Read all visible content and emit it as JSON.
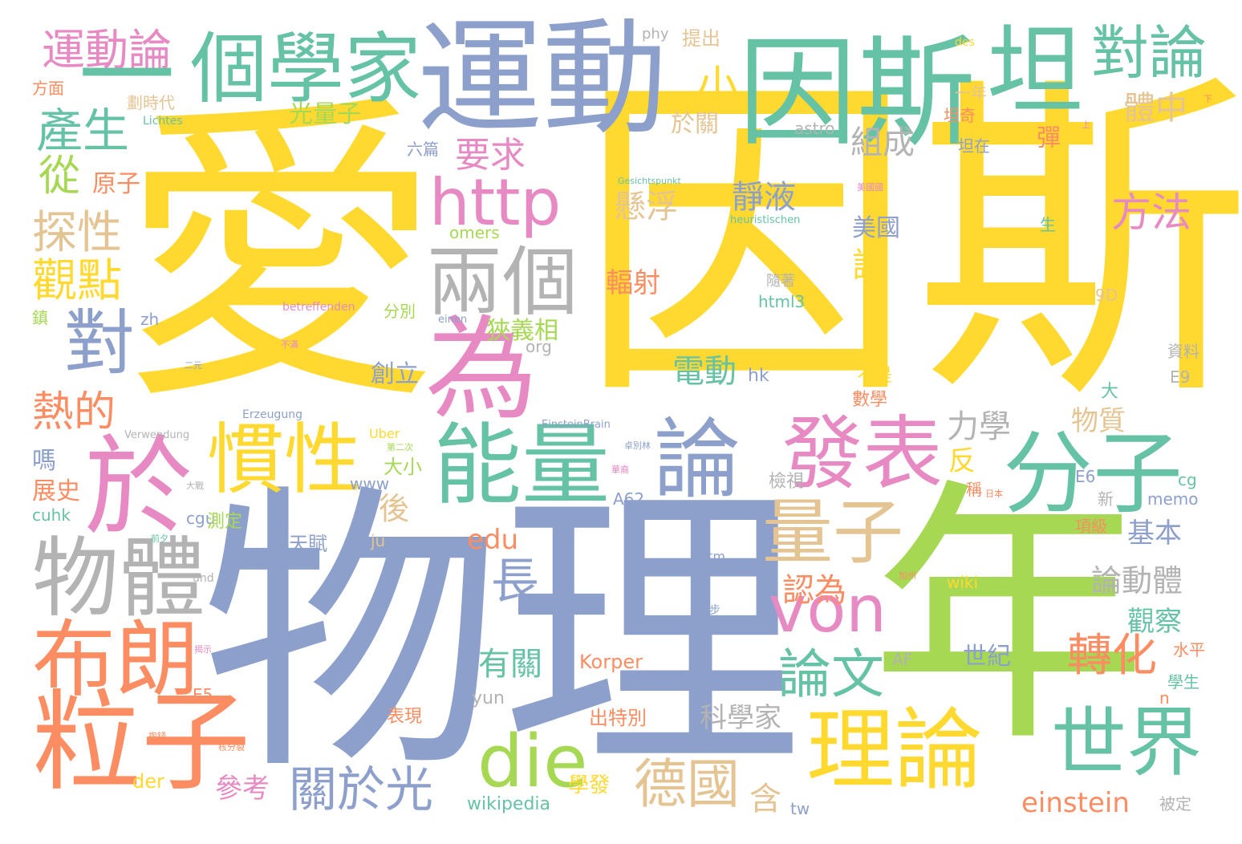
{
  "palette": {
    "yellow": "#ffd92f",
    "green": "#a6d854",
    "blue": "#8da0cb",
    "teal": "#66c2a5",
    "pink": "#e78ac3",
    "orange": "#fc8d62",
    "tan": "#e5c494",
    "gray": "#b3b3b3"
  },
  "words": [
    {
      "text": "愛",
      "color": "yellow",
      "role": "word-ai"
    },
    {
      "text": "因斯",
      "color": "yellow",
      "role": "word-yinsi"
    },
    {
      "text": "物理",
      "color": "blue",
      "role": "word-wuli"
    },
    {
      "text": "年",
      "color": "green",
      "role": "word-nian"
    },
    {
      "text": "運動",
      "color": "blue",
      "role": "word-yundong"
    },
    {
      "text": "因斯",
      "color": "teal",
      "role": "word-yinsi-2"
    },
    {
      "text": "坦",
      "color": "teal",
      "role": "word-tan"
    },
    {
      "text": "個學家",
      "color": "teal",
      "role": "word-gexuejia"
    },
    {
      "text": "運動論",
      "color": "pink",
      "role": "word-yundonglun"
    },
    {
      "text": "對論",
      "color": "teal",
      "role": "word-duilun"
    },
    {
      "text": "一",
      "color": "teal",
      "role": "word-yi"
    },
    {
      "text": "產生",
      "color": "teal",
      "role": "word-chansheng"
    },
    {
      "text": "為",
      "color": "pink",
      "role": "word-wei"
    },
    {
      "text": "於",
      "color": "pink",
      "role": "word-yu"
    },
    {
      "text": "能量",
      "color": "teal",
      "role": "word-nengliang"
    },
    {
      "text": "論",
      "color": "blue",
      "role": "word-lun"
    },
    {
      "text": "發表",
      "color": "pink",
      "role": "word-fabiao"
    },
    {
      "text": "分子",
      "color": "teal",
      "role": "word-fenzi"
    },
    {
      "text": "慣性",
      "color": "yellow",
      "role": "word-guanxing"
    },
    {
      "text": "物體",
      "color": "gray",
      "role": "word-wuti"
    },
    {
      "text": "布朗",
      "color": "orange",
      "role": "word-bulang"
    },
    {
      "text": "粒子",
      "color": "orange",
      "role": "word-lizi"
    },
    {
      "text": "http",
      "color": "pink",
      "role": "word-http"
    },
    {
      "text": "兩個",
      "color": "gray",
      "role": "word-liangge"
    },
    {
      "text": "對",
      "color": "blue",
      "role": "word-dui"
    },
    {
      "text": "量子",
      "color": "tan",
      "role": "word-liangzi"
    },
    {
      "text": "von",
      "color": "pink",
      "role": "word-von"
    },
    {
      "text": "理論",
      "color": "yellow",
      "role": "word-lilun"
    },
    {
      "text": "世界",
      "color": "teal",
      "role": "word-shijie"
    },
    {
      "text": "die",
      "color": "green",
      "role": "word-die"
    },
    {
      "text": "德國",
      "color": "tan",
      "role": "word-deguo"
    },
    {
      "text": "關於光",
      "color": "blue",
      "role": "word-guanyuguang"
    },
    {
      "text": "論文",
      "color": "teal",
      "role": "word-lunwen"
    },
    {
      "text": "長",
      "color": "blue",
      "role": "word-chang"
    },
    {
      "text": "從",
      "color": "green",
      "role": "word-cong"
    },
    {
      "text": "探性",
      "color": "tan",
      "role": "word-tanxing"
    },
    {
      "text": "觀點",
      "color": "yellow",
      "role": "word-guandian"
    },
    {
      "text": "熱的",
      "color": "orange",
      "role": "word-rede"
    },
    {
      "text": "要求",
      "color": "pink",
      "role": "word-yaoqiu"
    },
    {
      "text": "組成",
      "color": "gray",
      "role": "word-zucheng"
    },
    {
      "text": "靜液",
      "color": "blue",
      "role": "word-jingye"
    },
    {
      "text": "懸浮",
      "color": "tan",
      "role": "word-xuanfu"
    },
    {
      "text": "方法",
      "color": "pink",
      "role": "word-fangfa"
    },
    {
      "text": "小",
      "color": "yellow",
      "role": "word-xiao"
    },
    {
      "text": "體中",
      "color": "tan",
      "role": "word-tizhong"
    },
    {
      "text": "光量子",
      "color": "green",
      "role": "word-guangliangzi"
    },
    {
      "text": "原子",
      "color": "orange",
      "role": "word-yuanzi"
    },
    {
      "text": "美國",
      "color": "blue",
      "role": "word-meiguo"
    },
    {
      "text": "試",
      "color": "yellow",
      "role": "word-shi"
    },
    {
      "text": "輻射",
      "color": "orange",
      "role": "word-fushe"
    },
    {
      "text": "狹義相",
      "color": "green",
      "role": "word-xiayixiang"
    },
    {
      "text": "創立",
      "color": "blue",
      "role": "word-chuangli"
    },
    {
      "text": "電動",
      "color": "teal",
      "role": "word-diandong"
    },
    {
      "text": "力學",
      "color": "gray",
      "role": "word-lixue"
    },
    {
      "text": "物質",
      "color": "tan",
      "role": "word-wuzhi"
    },
    {
      "text": "反",
      "color": "yellow",
      "role": "word-fan"
    },
    {
      "text": "後",
      "color": "tan",
      "role": "word-hou"
    },
    {
      "text": "基本",
      "color": "blue",
      "role": "word-jiben"
    },
    {
      "text": "論動體",
      "color": "gray",
      "role": "word-lundongti"
    },
    {
      "text": "認為",
      "color": "orange",
      "role": "word-renwei"
    },
    {
      "text": "觀察",
      "color": "teal",
      "role": "word-guancha"
    },
    {
      "text": "轉化",
      "color": "orange",
      "role": "word-zhuanhua"
    },
    {
      "text": "有關",
      "color": "teal",
      "role": "word-youguan"
    },
    {
      "text": "科學家",
      "color": "gray",
      "role": "word-kexuejia"
    },
    {
      "text": "參考",
      "color": "pink",
      "role": "word-cankao"
    },
    {
      "text": "含",
      "color": "tan",
      "role": "word-han"
    },
    {
      "text": "einstein",
      "color": "orange",
      "role": "word-einstein"
    },
    {
      "text": "edu",
      "color": "orange",
      "role": "word-edu"
    },
    {
      "text": "嗎",
      "color": "blue",
      "role": "word-ma"
    },
    {
      "text": "展史",
      "color": "orange",
      "role": "word-zhanshi"
    },
    {
      "text": "提出",
      "color": "tan",
      "role": "word-tichu"
    },
    {
      "text": "phy",
      "color": "gray",
      "role": "word-phy"
    },
    {
      "text": "於關",
      "color": "tan",
      "role": "word-yuguan"
    },
    {
      "text": "一年",
      "color": "tan",
      "role": "word-yinian"
    },
    {
      "text": "坦奇",
      "color": "orange",
      "role": "word-tanqi"
    },
    {
      "text": "坦在",
      "color": "blue",
      "role": "word-tanzai"
    },
    {
      "text": "彈",
      "color": "orange",
      "role": "word-dan"
    },
    {
      "text": "方面",
      "color": "orange",
      "role": "word-fangmian"
    },
    {
      "text": "劃時代",
      "color": "tan",
      "role": "word-huashidai"
    },
    {
      "text": "Lichtes",
      "color": "teal",
      "role": "word-lichtes"
    },
    {
      "text": "六篇",
      "color": "blue",
      "role": "word-liupian"
    },
    {
      "text": "astro",
      "color": "gray",
      "role": "word-astro"
    },
    {
      "text": "omers",
      "color": "green",
      "role": "word-omers"
    },
    {
      "text": "heuristischen",
      "color": "teal",
      "role": "word-heuristischen"
    },
    {
      "text": "Gesichtspunkt",
      "color": "teal",
      "role": "word-gesichtspunkt"
    },
    {
      "text": "des",
      "color": "yellow",
      "role": "word-des"
    },
    {
      "text": "隨著",
      "color": "gray",
      "role": "word-suizhe"
    },
    {
      "text": "html3",
      "color": "teal",
      "role": "word-html3"
    },
    {
      "text": "betreffenden",
      "color": "pink",
      "role": "word-betreffenden"
    },
    {
      "text": "分別",
      "color": "green",
      "role": "word-fenbie"
    },
    {
      "text": "zh",
      "color": "blue",
      "role": "word-zh"
    },
    {
      "text": "org",
      "color": "gray",
      "role": "word-org"
    },
    {
      "text": "einen",
      "color": "blue",
      "role": "word-einen"
    },
    {
      "text": "hk",
      "color": "blue",
      "role": "word-hk"
    },
    {
      "text": "Erzeugung",
      "color": "blue",
      "role": "word-erzeugung"
    },
    {
      "text": "EinsteinBrain",
      "color": "blue",
      "role": "word-einsteinbrain"
    },
    {
      "text": "Verwendung",
      "color": "gray",
      "role": "word-verwendung"
    },
    {
      "text": "Uber",
      "color": "yellow",
      "role": "word-uber"
    },
    {
      "text": "大小",
      "color": "green",
      "role": "word-daxiao"
    },
    {
      "text": "www",
      "color": "blue",
      "role": "word-www"
    },
    {
      "text": "cuhk",
      "color": "teal",
      "role": "word-cuhk"
    },
    {
      "text": "cgu",
      "color": "blue",
      "role": "word-cgu"
    },
    {
      "text": "測定",
      "color": "green",
      "role": "word-ceding"
    },
    {
      "text": "天賦",
      "color": "blue",
      "role": "word-tianfu"
    },
    {
      "text": "ju",
      "color": "tan",
      "role": "word-ju"
    },
    {
      "text": "A62",
      "color": "blue",
      "role": "word-a62"
    },
    {
      "text": "檢視",
      "color": "gray",
      "role": "word-jianshi"
    },
    {
      "text": "htm",
      "color": "blue",
      "role": "word-htm"
    },
    {
      "text": "Korper",
      "color": "orange",
      "role": "word-korper"
    },
    {
      "text": "出特別",
      "color": "orange",
      "role": "word-chutebie"
    },
    {
      "text": "表現",
      "color": "orange",
      "role": "word-biaoxian"
    },
    {
      "text": "yun",
      "color": "gray",
      "role": "word-yun"
    },
    {
      "text": "der",
      "color": "yellow",
      "role": "word-der"
    },
    {
      "text": "wikipedia",
      "color": "teal",
      "role": "word-wikipedia"
    },
    {
      "text": "學發",
      "color": "yellow",
      "role": "word-xuefa"
    },
    {
      "text": "數學",
      "color": "orange",
      "role": "word-shuxue"
    },
    {
      "text": "不是",
      "color": "yellow",
      "role": "word-bushi"
    },
    {
      "text": "大",
      "color": "teal",
      "role": "word-da"
    },
    {
      "text": "E6",
      "color": "blue",
      "role": "word-e6"
    },
    {
      "text": "資料",
      "color": "gray",
      "role": "word-ziliao"
    },
    {
      "text": "E9",
      "color": "gray",
      "role": "word-e9"
    },
    {
      "text": "cg",
      "color": "teal",
      "role": "word-cg"
    },
    {
      "text": "memo",
      "color": "blue",
      "role": "word-memo"
    },
    {
      "text": "新",
      "color": "gray",
      "role": "word-xin"
    },
    {
      "text": "項級",
      "color": "orange",
      "role": "word-xiangji"
    },
    {
      "text": "wiki",
      "color": "yellow",
      "role": "word-wiki"
    },
    {
      "text": "世紀",
      "color": "blue",
      "role": "word-shiji"
    },
    {
      "text": "AF",
      "color": "gray",
      "role": "word-af"
    },
    {
      "text": "水平",
      "color": "orange",
      "role": "word-shuiping"
    },
    {
      "text": "學生",
      "color": "teal",
      "role": "word-xuesheng"
    },
    {
      "text": "n",
      "color": "orange",
      "role": "word-n"
    },
    {
      "text": "被定",
      "color": "gray",
      "role": "word-beiding"
    },
    {
      "text": "tw",
      "color": "blue",
      "role": "word-tw"
    },
    {
      "text": "E5",
      "color": "orange",
      "role": "word-e5"
    },
    {
      "text": "9D",
      "color": "tan",
      "role": "word-9d"
    },
    {
      "text": "生",
      "color": "teal",
      "role": "word-sheng"
    },
    {
      "text": "und",
      "color": "gray",
      "role": "word-und"
    },
    {
      "text": "一步",
      "color": "blue",
      "role": "word-yibu"
    },
    {
      "text": "稱",
      "color": "orange",
      "role": "word-cheng"
    },
    {
      "text": "二元",
      "color": "blue",
      "role": "word-eryuan"
    },
    {
      "text": "不滿",
      "color": "pink",
      "role": "word-buman"
    },
    {
      "text": "鎮",
      "color": "green",
      "role": "word-zhen"
    },
    {
      "text": "前夕",
      "color": "teal",
      "role": "word-qianxi"
    },
    {
      "text": "大戰",
      "color": "gray",
      "role": "word-dazhan"
    },
    {
      "text": "第二次",
      "color": "green",
      "role": "word-dierci"
    },
    {
      "text": "卓別林",
      "color": "blue",
      "role": "word-zhuobielin"
    },
    {
      "text": "華裔",
      "color": "pink",
      "role": "word-huayi"
    },
    {
      "text": "掏錢",
      "color": "orange",
      "role": "word-taoqian"
    },
    {
      "text": "核分裂",
      "color": "orange",
      "role": "word-fenlie"
    },
    {
      "text": "揭示",
      "color": "pink",
      "role": "word-jieshi"
    },
    {
      "text": "美國國",
      "color": "pink",
      "role": "word-meiguoguo"
    },
    {
      "text": "日本",
      "color": "orange",
      "role": "word-riben"
    },
    {
      "text": "加州",
      "color": "orange",
      "role": "word-jiazhou"
    },
    {
      "text": "上",
      "color": "pink",
      "role": "word-shang"
    },
    {
      "text": "下",
      "color": "orange",
      "role": "word-xia"
    }
  ]
}
